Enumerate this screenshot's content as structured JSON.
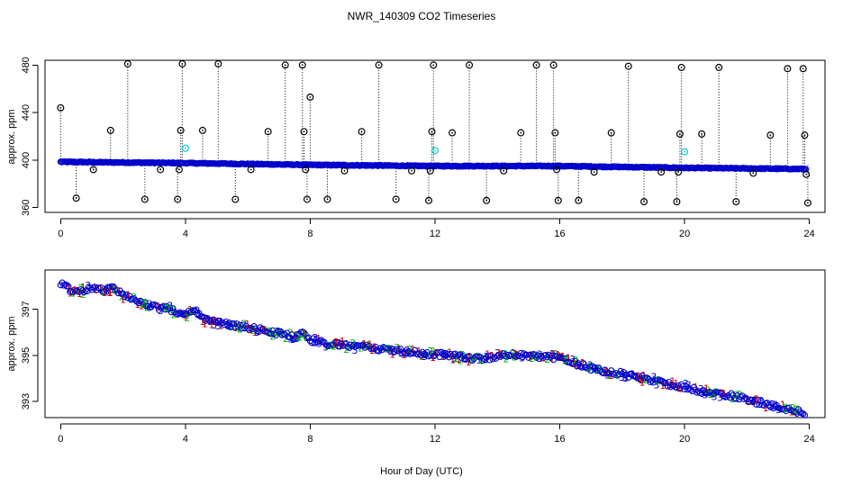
{
  "figure": {
    "title": "NWR_140309  CO2 Timeseries",
    "xlabel": "Hour of Day (UTC)"
  },
  "colors": {
    "axis": "#000000",
    "raw": "#0000cc",
    "outlier": "#000000",
    "flagged": "#00cccc",
    "inlet1": "#cc0000",
    "inlet2": "#00bb00",
    "inlet3": "#0000cc"
  },
  "chart_data": [
    {
      "type": "scatter",
      "name": "top-panel",
      "title": "",
      "xlabel": "",
      "ylabel": "approx. ppm",
      "xlim": [
        -0.5,
        24.5
      ],
      "ylim": [
        356,
        484
      ],
      "xticks": [
        0,
        4,
        8,
        12,
        16,
        20,
        24
      ],
      "yticks": [
        360,
        400,
        440,
        480
      ],
      "baseline_segments": [
        {
          "x0": 0.0,
          "x1": 3.95,
          "y0": 398.5,
          "y1": 397.5
        },
        {
          "x0": 4.0,
          "x1": 7.9,
          "y0": 397.5,
          "y1": 396.0
        },
        {
          "x0": 7.9,
          "x1": 12.0,
          "y0": 396.0,
          "y1": 395.0
        },
        {
          "x0": 12.0,
          "x1": 15.9,
          "y0": 395.0,
          "y1": 395.0
        },
        {
          "x0": 15.9,
          "x1": 19.9,
          "y0": 395.0,
          "y1": 393.5
        },
        {
          "x0": 19.9,
          "x1": 23.9,
          "y0": 393.5,
          "y1": 392.5
        }
      ],
      "outliers": [
        {
          "x": 0.0,
          "y": 444
        },
        {
          "x": 0.5,
          "y": 368
        },
        {
          "x": 1.05,
          "y": 392
        },
        {
          "x": 1.6,
          "y": 425
        },
        {
          "x": 2.15,
          "y": 481
        },
        {
          "x": 2.7,
          "y": 367
        },
        {
          "x": 3.2,
          "y": 392
        },
        {
          "x": 3.75,
          "y": 367
        },
        {
          "x": 3.8,
          "y": 392
        },
        {
          "x": 3.85,
          "y": 425
        },
        {
          "x": 3.9,
          "y": 481
        },
        {
          "x": 4.55,
          "y": 425
        },
        {
          "x": 5.05,
          "y": 481
        },
        {
          "x": 5.6,
          "y": 367
        },
        {
          "x": 6.1,
          "y": 392
        },
        {
          "x": 6.65,
          "y": 424
        },
        {
          "x": 7.2,
          "y": 480
        },
        {
          "x": 7.75,
          "y": 480
        },
        {
          "x": 7.8,
          "y": 424
        },
        {
          "x": 7.85,
          "y": 392
        },
        {
          "x": 7.9,
          "y": 367
        },
        {
          "x": 8.0,
          "y": 453
        },
        {
          "x": 8.55,
          "y": 367
        },
        {
          "x": 9.1,
          "y": 391
        },
        {
          "x": 9.65,
          "y": 424
        },
        {
          "x": 10.2,
          "y": 480
        },
        {
          "x": 10.75,
          "y": 367
        },
        {
          "x": 11.25,
          "y": 391
        },
        {
          "x": 11.8,
          "y": 366
        },
        {
          "x": 11.85,
          "y": 391
        },
        {
          "x": 11.9,
          "y": 424
        },
        {
          "x": 11.95,
          "y": 480
        },
        {
          "x": 12.55,
          "y": 423
        },
        {
          "x": 13.1,
          "y": 480
        },
        {
          "x": 13.65,
          "y": 366
        },
        {
          "x": 14.2,
          "y": 391
        },
        {
          "x": 14.75,
          "y": 423
        },
        {
          "x": 15.25,
          "y": 480
        },
        {
          "x": 15.8,
          "y": 480
        },
        {
          "x": 15.85,
          "y": 423
        },
        {
          "x": 15.9,
          "y": 392
        },
        {
          "x": 15.95,
          "y": 366
        },
        {
          "x": 16.6,
          "y": 366
        },
        {
          "x": 17.1,
          "y": 390
        },
        {
          "x": 17.65,
          "y": 423
        },
        {
          "x": 18.2,
          "y": 479
        },
        {
          "x": 18.7,
          "y": 365
        },
        {
          "x": 19.25,
          "y": 390
        },
        {
          "x": 19.75,
          "y": 365
        },
        {
          "x": 19.8,
          "y": 390
        },
        {
          "x": 19.85,
          "y": 422
        },
        {
          "x": 19.9,
          "y": 478
        },
        {
          "x": 20.55,
          "y": 422
        },
        {
          "x": 21.1,
          "y": 478
        },
        {
          "x": 21.65,
          "y": 365
        },
        {
          "x": 22.2,
          "y": 389
        },
        {
          "x": 22.75,
          "y": 421
        },
        {
          "x": 23.3,
          "y": 477
        },
        {
          "x": 23.8,
          "y": 477
        },
        {
          "x": 23.85,
          "y": 421
        },
        {
          "x": 23.9,
          "y": 388
        },
        {
          "x": 23.95,
          "y": 364
        }
      ],
      "flagged": [
        {
          "x": 4.0,
          "y": 410
        },
        {
          "x": 12.0,
          "y": 408
        },
        {
          "x": 20.0,
          "y": 407
        }
      ]
    },
    {
      "type": "scatter",
      "name": "bottom-panel",
      "title": "",
      "xlabel": "Hour of Day (UTC)",
      "ylabel": "approx. ppm",
      "xlim": [
        -0.5,
        24.5
      ],
      "ylim": [
        392.3,
        398.7
      ],
      "xticks": [
        0,
        4,
        8,
        12,
        16,
        20,
        24
      ],
      "yticks": [
        393,
        395,
        397
      ],
      "series_symbols": [
        "1",
        "2",
        "3"
      ],
      "knots": [
        {
          "x": 0.0,
          "y": 398.15
        },
        {
          "x": 0.3,
          "y": 397.85
        },
        {
          "x": 0.6,
          "y": 397.75
        },
        {
          "x": 1.0,
          "y": 397.95
        },
        {
          "x": 1.3,
          "y": 397.85
        },
        {
          "x": 1.7,
          "y": 397.9
        },
        {
          "x": 2.0,
          "y": 397.6
        },
        {
          "x": 2.5,
          "y": 397.35
        },
        {
          "x": 3.0,
          "y": 397.1
        },
        {
          "x": 3.5,
          "y": 397.0
        },
        {
          "x": 3.9,
          "y": 396.75
        },
        {
          "x": 4.05,
          "y": 396.8
        },
        {
          "x": 4.3,
          "y": 396.95
        },
        {
          "x": 4.6,
          "y": 396.55
        },
        {
          "x": 5.0,
          "y": 396.45
        },
        {
          "x": 5.5,
          "y": 396.3
        },
        {
          "x": 6.0,
          "y": 396.2
        },
        {
          "x": 6.5,
          "y": 396.1
        },
        {
          "x": 7.0,
          "y": 395.95
        },
        {
          "x": 7.5,
          "y": 395.8
        },
        {
          "x": 7.8,
          "y": 395.95
        },
        {
          "x": 8.05,
          "y": 395.65
        },
        {
          "x": 8.5,
          "y": 395.5
        },
        {
          "x": 9.0,
          "y": 395.45
        },
        {
          "x": 9.5,
          "y": 395.4
        },
        {
          "x": 10.0,
          "y": 395.3
        },
        {
          "x": 10.5,
          "y": 395.25
        },
        {
          "x": 11.0,
          "y": 395.15
        },
        {
          "x": 11.5,
          "y": 395.1
        },
        {
          "x": 11.9,
          "y": 395.05
        },
        {
          "x": 12.05,
          "y": 395.05
        },
        {
          "x": 12.5,
          "y": 395.0
        },
        {
          "x": 13.0,
          "y": 394.9
        },
        {
          "x": 13.5,
          "y": 394.85
        },
        {
          "x": 14.0,
          "y": 394.95
        },
        {
          "x": 14.5,
          "y": 395.05
        },
        {
          "x": 15.0,
          "y": 394.95
        },
        {
          "x": 15.5,
          "y": 394.95
        },
        {
          "x": 15.9,
          "y": 394.9
        },
        {
          "x": 16.05,
          "y": 394.9
        },
        {
          "x": 16.5,
          "y": 394.65
        },
        {
          "x": 17.0,
          "y": 394.45
        },
        {
          "x": 17.5,
          "y": 394.3
        },
        {
          "x": 18.0,
          "y": 394.2
        },
        {
          "x": 18.5,
          "y": 394.05
        },
        {
          "x": 19.0,
          "y": 393.9
        },
        {
          "x": 19.5,
          "y": 393.75
        },
        {
          "x": 19.9,
          "y": 393.65
        },
        {
          "x": 20.05,
          "y": 393.6
        },
        {
          "x": 20.5,
          "y": 393.45
        },
        {
          "x": 21.0,
          "y": 393.35
        },
        {
          "x": 21.5,
          "y": 393.25
        },
        {
          "x": 22.0,
          "y": 393.1
        },
        {
          "x": 22.5,
          "y": 392.9
        },
        {
          "x": 23.0,
          "y": 392.75
        },
        {
          "x": 23.5,
          "y": 392.6
        },
        {
          "x": 23.9,
          "y": 392.5
        }
      ]
    }
  ]
}
